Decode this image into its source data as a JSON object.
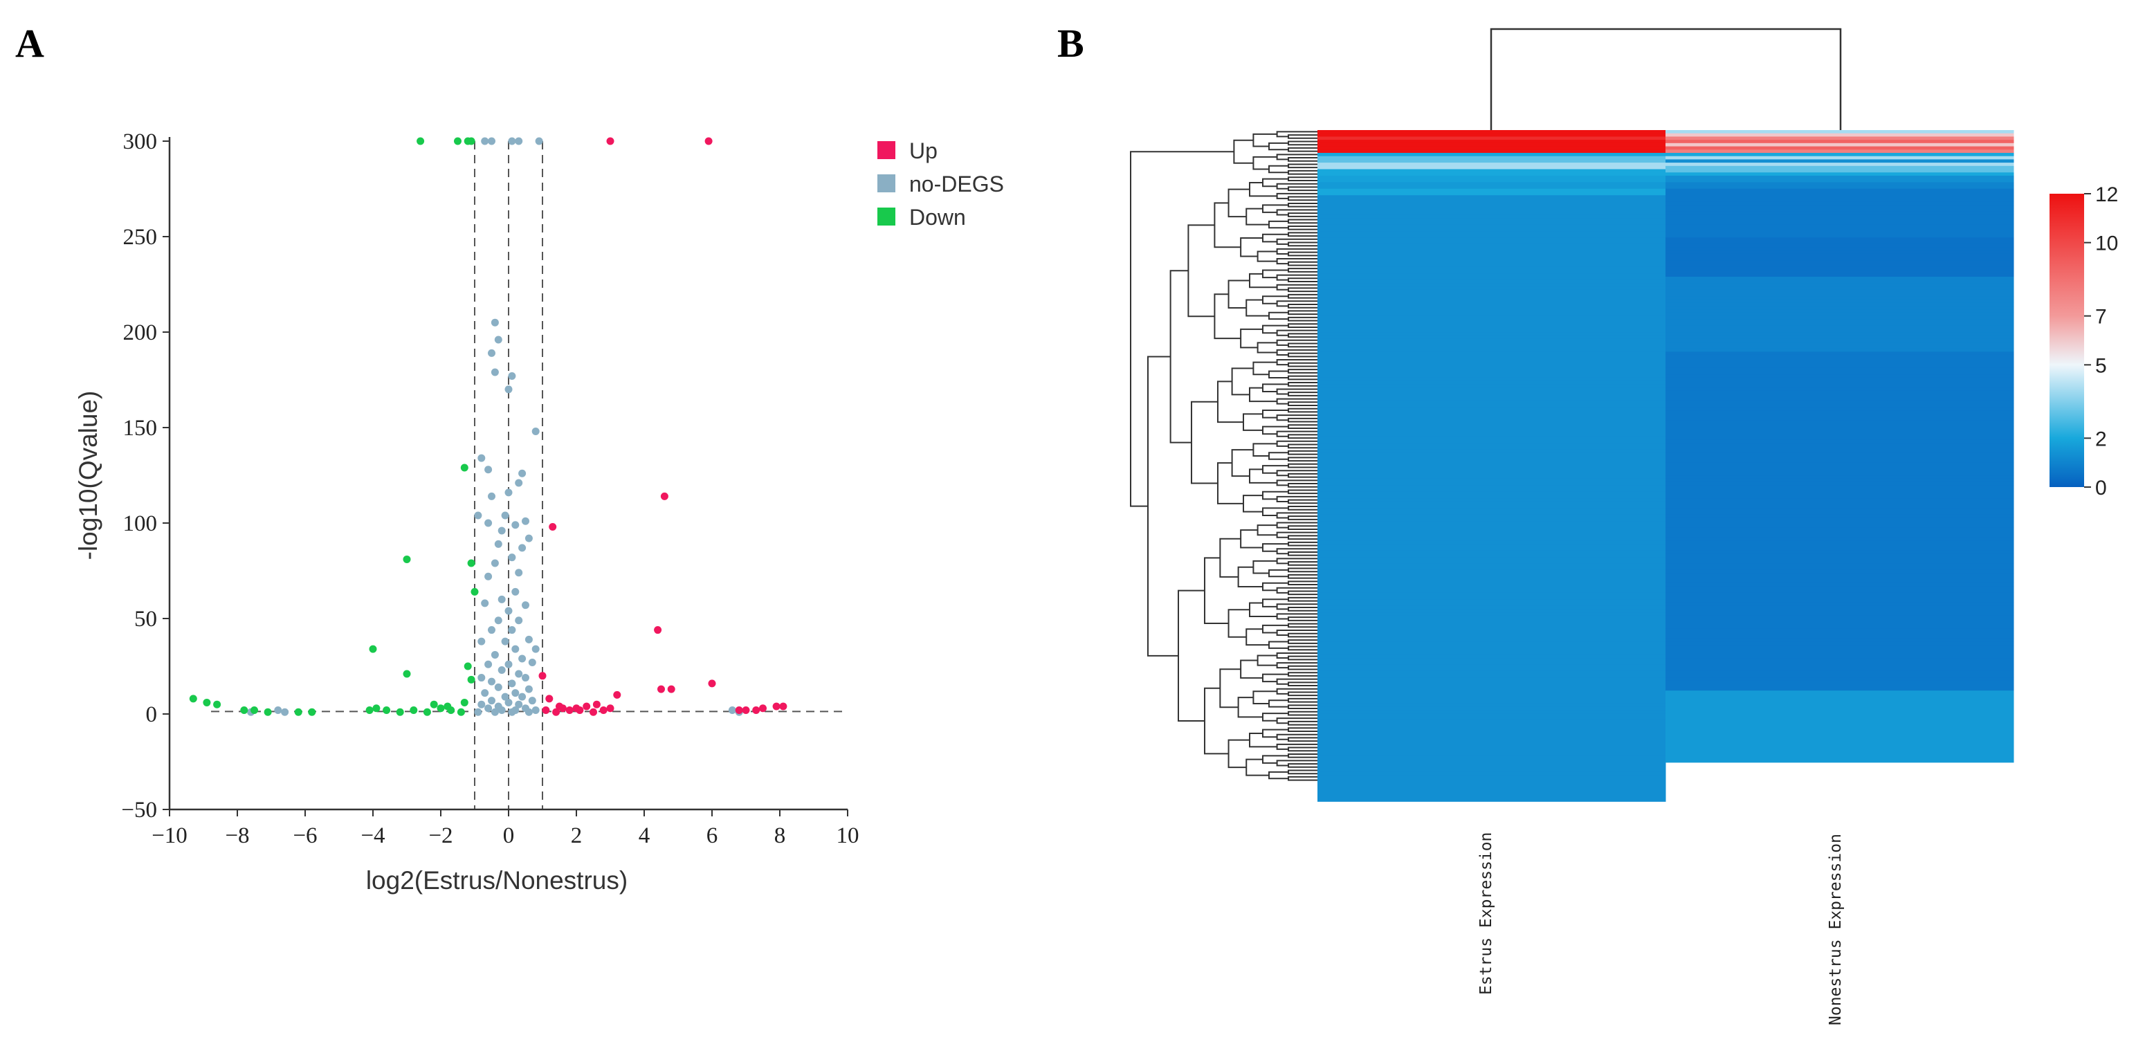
{
  "panels": {
    "a_label": "A",
    "b_label": "B"
  },
  "chart_data": [
    {
      "type": "scatter",
      "name": "volcano",
      "xlabel": "log2(Estrus/Nonestrus)",
      "ylabel": "-log10(Qvalue)",
      "xlim": [
        -10,
        10
      ],
      "ylim": [
        -50,
        300
      ],
      "xticks": [
        "−10",
        "−8",
        "−6",
        "−4",
        "−2",
        "0",
        "2",
        "4",
        "6",
        "8",
        "10"
      ],
      "yticks": [
        "−50",
        "0",
        "50",
        "100",
        "150",
        "200",
        "250",
        "300"
      ],
      "thresholds": {
        "x": [
          -1,
          0,
          1
        ],
        "y": 1.3
      },
      "legend": [
        {
          "key": "up",
          "label": "Up",
          "color": "#f0175e"
        },
        {
          "key": "no",
          "label": "no-DEGS",
          "color": "#8aafc4"
        },
        {
          "key": "down",
          "label": "Down",
          "color": "#18c94c"
        }
      ],
      "series": {
        "up": [
          [
            3.0,
            300
          ],
          [
            5.9,
            300
          ],
          [
            4.6,
            114
          ],
          [
            1.3,
            98
          ],
          [
            4.4,
            44
          ],
          [
            1.0,
            20
          ],
          [
            6.0,
            16
          ],
          [
            4.5,
            13
          ],
          [
            4.8,
            13
          ],
          [
            3.2,
            10
          ],
          [
            1.2,
            8
          ],
          [
            1.5,
            4
          ],
          [
            2.3,
            4
          ],
          [
            2.6,
            5
          ],
          [
            3.0,
            3
          ],
          [
            7.0,
            2
          ],
          [
            7.5,
            3
          ],
          [
            7.9,
            4
          ],
          [
            8.1,
            4
          ],
          [
            2.0,
            3
          ],
          [
            1.8,
            2
          ],
          [
            2.8,
            2
          ],
          [
            1.1,
            2
          ],
          [
            1.4,
            1
          ],
          [
            6.8,
            2
          ],
          [
            7.3,
            2
          ],
          [
            1.6,
            3
          ],
          [
            2.1,
            2
          ],
          [
            2.5,
            1
          ]
        ],
        "down": [
          [
            -2.6,
            300
          ],
          [
            -1.5,
            300
          ],
          [
            -1.2,
            300
          ],
          [
            -1.1,
            300
          ],
          [
            -1.3,
            129
          ],
          [
            -3.0,
            81
          ],
          [
            -1.1,
            79
          ],
          [
            -1.0,
            64
          ],
          [
            -4.0,
            34
          ],
          [
            -3.0,
            21
          ],
          [
            -1.2,
            25
          ],
          [
            -1.1,
            18
          ],
          [
            -9.3,
            8
          ],
          [
            -8.9,
            6
          ],
          [
            -8.6,
            5
          ],
          [
            -7.8,
            2
          ],
          [
            -7.5,
            2
          ],
          [
            -7.1,
            1
          ],
          [
            -4.1,
            2
          ],
          [
            -3.6,
            2
          ],
          [
            -3.2,
            1
          ],
          [
            -2.8,
            2
          ],
          [
            -2.4,
            1
          ],
          [
            -2.0,
            3
          ],
          [
            -1.7,
            2
          ],
          [
            -1.4,
            1
          ],
          [
            -5.8,
            1
          ],
          [
            -6.2,
            1
          ],
          [
            -3.9,
            3
          ],
          [
            -2.2,
            5
          ],
          [
            -1.8,
            4
          ],
          [
            -1.3,
            6
          ]
        ],
        "no": [
          [
            -0.7,
            300
          ],
          [
            -0.5,
            300
          ],
          [
            0.1,
            300
          ],
          [
            0.3,
            300
          ],
          [
            0.9,
            300
          ],
          [
            -0.4,
            205
          ],
          [
            -0.3,
            196
          ],
          [
            -0.5,
            189
          ],
          [
            0.1,
            177
          ],
          [
            0.0,
            170
          ],
          [
            -0.4,
            179
          ],
          [
            0.8,
            148
          ],
          [
            -0.8,
            134
          ],
          [
            -0.6,
            128
          ],
          [
            0.4,
            126
          ],
          [
            0.3,
            121
          ],
          [
            0.0,
            116
          ],
          [
            -0.5,
            114
          ],
          [
            -0.1,
            104
          ],
          [
            0.5,
            101
          ],
          [
            -0.9,
            104
          ],
          [
            -0.6,
            100
          ],
          [
            0.2,
            99
          ],
          [
            -0.2,
            96
          ],
          [
            0.6,
            92
          ],
          [
            -0.3,
            89
          ],
          [
            0.4,
            87
          ],
          [
            0.1,
            82
          ],
          [
            -0.4,
            79
          ],
          [
            0.3,
            74
          ],
          [
            -0.6,
            72
          ],
          [
            0.2,
            64
          ],
          [
            -0.2,
            60
          ],
          [
            0.5,
            57
          ],
          [
            -0.7,
            58
          ],
          [
            0.0,
            54
          ],
          [
            -0.3,
            49
          ],
          [
            0.3,
            49
          ],
          [
            0.8,
            34
          ],
          [
            -0.5,
            44
          ],
          [
            0.1,
            44
          ],
          [
            -0.8,
            38
          ],
          [
            0.6,
            39
          ],
          [
            -0.1,
            38
          ],
          [
            0.2,
            34
          ],
          [
            -0.4,
            31
          ],
          [
            0.4,
            29
          ],
          [
            -0.6,
            26
          ],
          [
            0.7,
            27
          ],
          [
            0.0,
            26
          ],
          [
            -0.2,
            23
          ],
          [
            0.3,
            21
          ],
          [
            -0.8,
            19
          ],
          [
            0.5,
            19
          ],
          [
            -0.5,
            17
          ],
          [
            0.1,
            16
          ],
          [
            -0.3,
            14
          ],
          [
            0.6,
            13
          ],
          [
            -0.7,
            11
          ],
          [
            0.2,
            11
          ],
          [
            -0.1,
            9
          ],
          [
            0.4,
            9
          ],
          [
            -0.5,
            7
          ],
          [
            0.7,
            7
          ],
          [
            0.0,
            6
          ],
          [
            -0.8,
            5
          ],
          [
            0.3,
            5
          ],
          [
            -0.3,
            4
          ],
          [
            0.5,
            3
          ],
          [
            -0.6,
            3
          ],
          [
            0.2,
            2
          ],
          [
            -0.2,
            2
          ],
          [
            0.8,
            2
          ],
          [
            0.1,
            1
          ],
          [
            -0.9,
            1
          ],
          [
            -0.4,
            1
          ],
          [
            0.6,
            1
          ],
          [
            -6.8,
            2
          ],
          [
            -6.6,
            1
          ],
          [
            6.6,
            2
          ],
          [
            6.8,
            1
          ],
          [
            -7.6,
            1
          ]
        ]
      }
    },
    {
      "type": "heatmap",
      "name": "expression-heatmap",
      "columns": [
        "Estrus Expression",
        "Nonestrus Expression"
      ],
      "row_count": 200,
      "value_range": [
        0,
        12
      ],
      "colorbar_ticks": [
        "12",
        "10",
        "7",
        "5",
        "2",
        "0"
      ],
      "colorscale": [
        [
          0,
          "#0660c0"
        ],
        [
          2,
          "#18a8dc"
        ],
        [
          5,
          "#eef6fb"
        ],
        [
          7,
          "#f39a9a"
        ],
        [
          12,
          "#ee1111"
        ]
      ],
      "values": {
        "estrus": [
          12,
          12,
          11,
          12,
          12,
          12,
          12,
          2,
          3,
          3,
          4,
          4,
          2,
          2,
          1.8,
          1.8,
          1.6,
          1.6,
          2,
          2,
          1.3,
          1.3,
          1.3,
          1.3,
          1.3,
          1.3,
          1.3,
          1.3,
          1.3,
          1.3,
          1.3,
          1.3,
          1.3,
          1.3,
          1.3,
          1.3,
          1.3,
          1.3,
          1.3,
          1.3,
          1.3,
          1.3,
          1.3,
          1.3,
          1.3,
          1.3,
          1.3,
          1.3,
          1.3,
          1.3,
          1.3,
          1.3,
          1.3,
          1.3,
          1.3,
          1.3,
          1.3,
          1.3,
          1.3,
          1.3,
          1.3,
          1.3,
          1.3,
          1.3,
          1.3,
          1.3,
          1.3,
          1.3,
          1.3,
          1.3,
          1.3,
          1.3,
          1.3,
          1.3,
          1.3,
          1.3,
          1.3,
          1.3,
          1.3,
          1.3,
          1.3,
          1.3,
          1.3,
          1.3,
          1.3,
          1.3,
          1.3,
          1.3,
          1.3,
          1.3,
          1.3,
          1.3,
          1.3,
          1.3,
          1.3,
          1.3,
          1.3,
          1.3,
          1.3,
          1.3,
          1.3,
          1.3,
          1.3,
          1.3,
          1.3,
          1.3,
          1.3,
          1.3,
          1.3,
          1.3,
          1.3,
          1.3,
          1.3,
          1.3,
          1.3,
          1.3,
          1.3,
          1.3,
          1.3,
          1.3,
          1.3,
          1.3,
          1.3,
          1.3,
          1.3,
          1.3,
          1.3,
          1.3,
          1.3,
          1.3,
          1.3,
          1.3,
          1.3,
          1.3,
          1.3,
          1.3,
          1.3,
          1.3,
          1.3,
          1.3,
          1.3,
          1.3,
          1.3,
          1.3,
          1.3,
          1.3,
          1.3,
          1.3,
          1.3,
          1.3,
          1.3,
          1.3,
          1.3,
          1.3,
          1.3,
          1.3,
          1.3,
          1.3,
          1.3,
          1.3,
          1.3,
          1.3,
          1.3,
          1.3,
          1.3,
          1.3,
          1.3,
          1.3,
          1.3,
          1.3,
          1.3,
          1.3,
          1.3,
          1.3,
          1.3,
          1.3,
          1.3,
          1.3,
          1.3,
          1.3,
          1.3,
          1.3,
          1.3,
          1.3,
          1.3,
          1.3,
          1.3,
          1.3,
          1.3,
          1.3,
          1.3,
          1.3,
          1.3,
          1.3,
          1.3,
          1.3,
          1.3,
          1.3,
          1.3,
          1.3,
          1.3,
          1.3,
          1.3,
          1.3,
          1.3,
          1.3
        ],
        "nonestrus": [
          4,
          6,
          8,
          9,
          6,
          9,
          8,
          2,
          4,
          1.3,
          4,
          3,
          3,
          2,
          1.3,
          1.3,
          1,
          1,
          0.7,
          0.7,
          0.7,
          0.7,
          0.7,
          0.7,
          0.7,
          0.7,
          0.7,
          0.7,
          0.7,
          0.7,
          0.7,
          0.7,
          0.7,
          0.5,
          0.5,
          0.5,
          0.5,
          0.5,
          0.5,
          0.5,
          0.5,
          0.5,
          0.5,
          0.5,
          0.5,
          1,
          1,
          1,
          1,
          1,
          1,
          1,
          1,
          1,
          1,
          1,
          1,
          1,
          1,
          1,
          1,
          1,
          1,
          1,
          1,
          1,
          1,
          1,
          0.7,
          0.7,
          0.7,
          0.7,
          0.7,
          0.7,
          0.7,
          0.7,
          0.7,
          0.7,
          0.7,
          0.7,
          0.7,
          0.7,
          0.7,
          0.7,
          0.7,
          0.7,
          0.7,
          0.7,
          0.7,
          0.7,
          0.7,
          0.7,
          0.7,
          0.7,
          0.7,
          0.7,
          0.7,
          0.7,
          0.7,
          0.7,
          0.7,
          0.7,
          0.7,
          0.7,
          0.7,
          0.7,
          0.7,
          0.7,
          0.7,
          0.7,
          0.7,
          0.7,
          0.7,
          0.7,
          0.7,
          0.7,
          0.7,
          0.7,
          0.7,
          0.7,
          0.7,
          0.7,
          0.7,
          0.7,
          0.7,
          0.7,
          0.7,
          0.7,
          0.7,
          0.7,
          0.7,
          0.7,
          0.7,
          0.7,
          0.7,
          0.7,
          0.7,
          0.7,
          0.7,
          0.7,
          0.7,
          0.7,
          0.7,
          0.7,
          0.7,
          0.7,
          0.7,
          0.7,
          0.7,
          0.7,
          0.7,
          0.7,
          0.7,
          0.7,
          0.7,
          0.7,
          0.7,
          0.7,
          0.7,
          0.7,
          0.7,
          0.7,
          0.7,
          0.7,
          0.7,
          0.7,
          0.7,
          0.7,
          0.7,
          0.7,
          0.7,
          0.7,
          1.6,
          1.6,
          1.6,
          1.6,
          1.6,
          1.6,
          1.6,
          1.6,
          1.6,
          1.6,
          1.6,
          1.6,
          1.6,
          1.6,
          1.6,
          1.6,
          1.6,
          1.6,
          1.6,
          1.6,
          1.6,
          1.6
        ]
      }
    }
  ]
}
